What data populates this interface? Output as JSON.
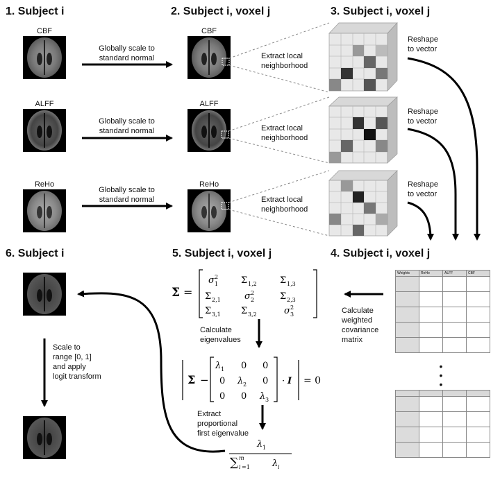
{
  "panels": {
    "p1": "1. Subject i",
    "p2": "2. Subject i, voxel j",
    "p3": "3. Subject i, voxel j",
    "p4": "4. Subject i, voxel j",
    "p5": "5. Subject i, voxel j",
    "p6": "6. Subject i"
  },
  "modalities": [
    "CBF",
    "ALFF",
    "ReHo"
  ],
  "steps": {
    "scale_line1": "Globally scale to",
    "scale_line2": "standard normal",
    "extract_line1": "Extract local",
    "extract_line2": "neighborhood",
    "reshape_line1": "Reshape",
    "reshape_line2": "to vector",
    "cov_line1": "Calculate",
    "cov_line2": "weighted",
    "cov_line3": "covariance",
    "cov_line4": "matrix",
    "eig_line1": "Calculate",
    "eig_line2": "eigenvalues",
    "prop_line1": "Extract",
    "prop_line2": "proportional",
    "prop_line3": "first eigenvalue",
    "logit_line1": "Scale to",
    "logit_line2": "range [0, 1]",
    "logit_line3": "and apply",
    "logit_line4": "logit transform"
  },
  "table_headers": [
    "Weights",
    "ReHo",
    "ALFF",
    "CBF"
  ],
  "ellipsis": "•\n•\n•",
  "colors": {
    "arrow": "#000000",
    "dashed": "#888888",
    "table_header": "#d9d9d9"
  }
}
